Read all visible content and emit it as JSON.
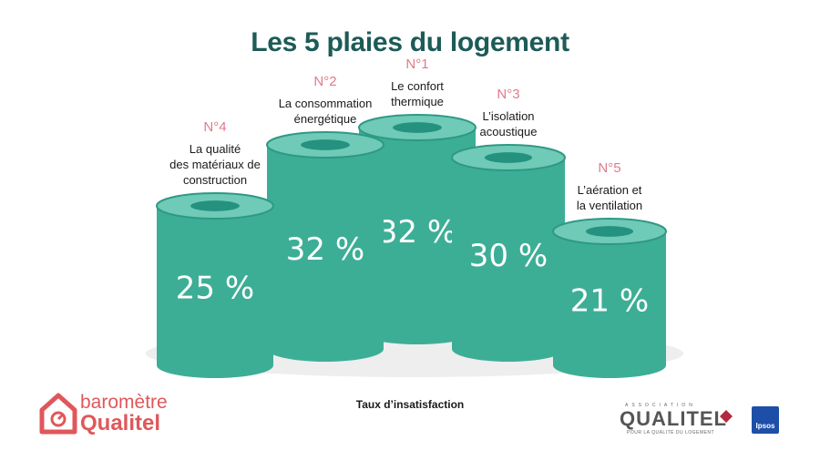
{
  "title": "Les 5 plaies du logement",
  "footer_label": "Taux d’insatisfaction",
  "logos": {
    "barometre_line1": "baromètre",
    "barometre_line2": "Qualitel",
    "association_prefix": "ASSOCIATION",
    "qualitel": "QUALITEL",
    "qualitel_sub": "POUR LA QUALITÉ DU LOGEMENT",
    "ipsos": "Ipsos"
  },
  "colors": {
    "cylinder_body": "#3dae96",
    "cylinder_top": "#6fcab7",
    "cylinder_top_rim": "#2e9984",
    "cylinder_hole": "#259280",
    "shadow": "#eeeeee",
    "rank": "#e07b8a",
    "label": "#1a1a1a",
    "value_text": "#ffffff"
  },
  "chart_data": {
    "type": "bar",
    "title": "Les 5 plaies du logement",
    "xlabel": "Taux d’insatisfaction",
    "unit": "%",
    "categories": [
      "La qualité des matériaux de construction",
      "La consommation énergétique",
      "Le confort thermique",
      "L’isolation acoustique",
      "L’aération et la ventilation"
    ],
    "values": [
      25,
      32,
      32,
      30,
      21
    ],
    "ranks": [
      "N°4",
      "N°2",
      "N°1",
      "N°3",
      "N°5"
    ],
    "value_labels": [
      "25 %",
      "32 %",
      "32 %",
      "30 %",
      "21 %"
    ],
    "label_lines": [
      [
        "La qualité",
        "des matériaux de",
        "construction"
      ],
      [
        "La consommation",
        "énergétique"
      ],
      [
        "Le confort",
        "thermique"
      ],
      [
        "L’isolation",
        "acoustique"
      ],
      [
        "L’aération et",
        "la ventilation"
      ]
    ]
  }
}
